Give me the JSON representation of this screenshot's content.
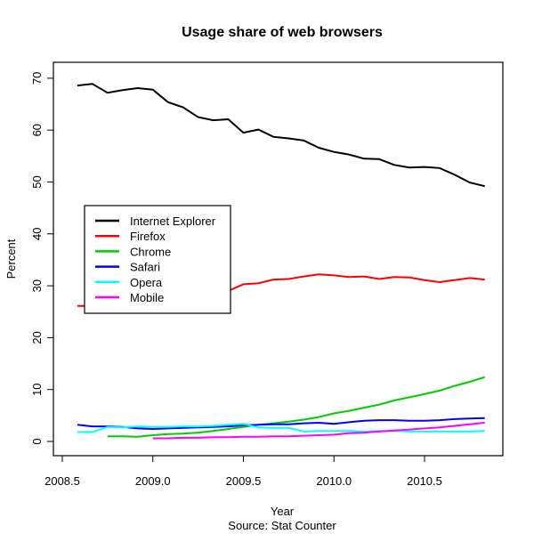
{
  "chart_data": {
    "type": "line",
    "title": "Usage share of web browsers",
    "xlabel": "Year",
    "ylabel": "Percent",
    "subtitle": "Source:  Stat Counter",
    "xlim": [
      2008.5,
      2010.85
    ],
    "ylim": [
      -3,
      73
    ],
    "x_ticks": [
      2008.5,
      2009.0,
      2009.5,
      2010.0,
      2010.5
    ],
    "x_tick_labels": [
      "2008.5",
      "2009.0",
      "2009.5",
      "2010.0",
      "2010.5"
    ],
    "y_ticks": [
      0,
      10,
      20,
      30,
      40,
      50,
      60,
      70
    ],
    "y_tick_labels": [
      "0",
      "10",
      "20",
      "30",
      "40",
      "50",
      "60",
      "70"
    ],
    "grid": false,
    "legend_placement": "center-left",
    "x_start": 2008.583,
    "x_step": 0.08333,
    "series": [
      {
        "name": "Internet Explorer",
        "color": "#000000",
        "start_index": 0,
        "values": [
          68.6,
          68.9,
          67.2,
          67.7,
          68.1,
          67.8,
          65.4,
          64.4,
          62.5,
          61.9,
          62.1,
          59.5,
          60.1,
          58.7,
          58.4,
          58.0,
          56.6,
          55.8,
          55.3,
          54.5,
          54.4,
          53.3,
          52.8,
          52.9,
          52.7,
          51.4,
          49.9,
          49.2
        ]
      },
      {
        "name": "Firefox",
        "color": "#ff0000",
        "start_index": 0,
        "values": [
          26.1,
          26.1,
          26.4,
          26.8,
          27.0,
          27.3,
          27.6,
          27.8,
          28.0,
          28.5,
          29.0,
          30.3,
          30.5,
          31.2,
          31.3,
          31.8,
          32.2,
          32.0,
          31.7,
          31.8,
          31.3,
          31.7,
          31.6,
          31.1,
          30.7,
          31.1,
          31.5,
          31.2
        ]
      },
      {
        "name": "Chrome",
        "color": "#00cd00",
        "start_index": 2,
        "values": [
          1.0,
          1.0,
          0.9,
          1.2,
          1.4,
          1.5,
          1.7,
          2.0,
          2.4,
          2.8,
          3.2,
          3.5,
          3.8,
          4.2,
          4.7,
          5.4,
          5.9,
          6.5,
          7.1,
          7.9,
          8.5,
          9.1,
          9.8,
          10.7,
          11.5,
          12.4
        ]
      },
      {
        "name": "Safari",
        "color": "#0000ff",
        "start_index": 0,
        "values": [
          3.2,
          2.9,
          2.9,
          2.8,
          2.5,
          2.4,
          2.5,
          2.6,
          2.7,
          2.8,
          2.9,
          3.1,
          3.2,
          3.3,
          3.3,
          3.5,
          3.6,
          3.4,
          3.7,
          4.0,
          4.1,
          4.1,
          4.0,
          4.0,
          4.1,
          4.3,
          4.4,
          4.5
        ]
      },
      {
        "name": "Opera",
        "color": "#00ffff",
        "start_index": 0,
        "values": [
          1.8,
          1.8,
          2.8,
          2.7,
          2.9,
          2.8,
          2.8,
          2.9,
          2.9,
          3.0,
          3.2,
          3.4,
          2.7,
          2.6,
          2.6,
          1.9,
          2.0,
          2.0,
          2.0,
          1.9,
          2.0,
          2.0,
          1.9,
          1.9,
          1.9,
          1.9,
          1.9,
          2.0
        ]
      },
      {
        "name": "Mobile",
        "color": "#ff00ff",
        "start_index": 5,
        "values": [
          0.6,
          0.6,
          0.7,
          0.7,
          0.8,
          0.8,
          0.9,
          0.9,
          1.0,
          1.0,
          1.1,
          1.2,
          1.3,
          1.6,
          1.7,
          1.9,
          2.1,
          2.3,
          2.5,
          2.7,
          3.0,
          3.3,
          3.6
        ]
      }
    ]
  }
}
